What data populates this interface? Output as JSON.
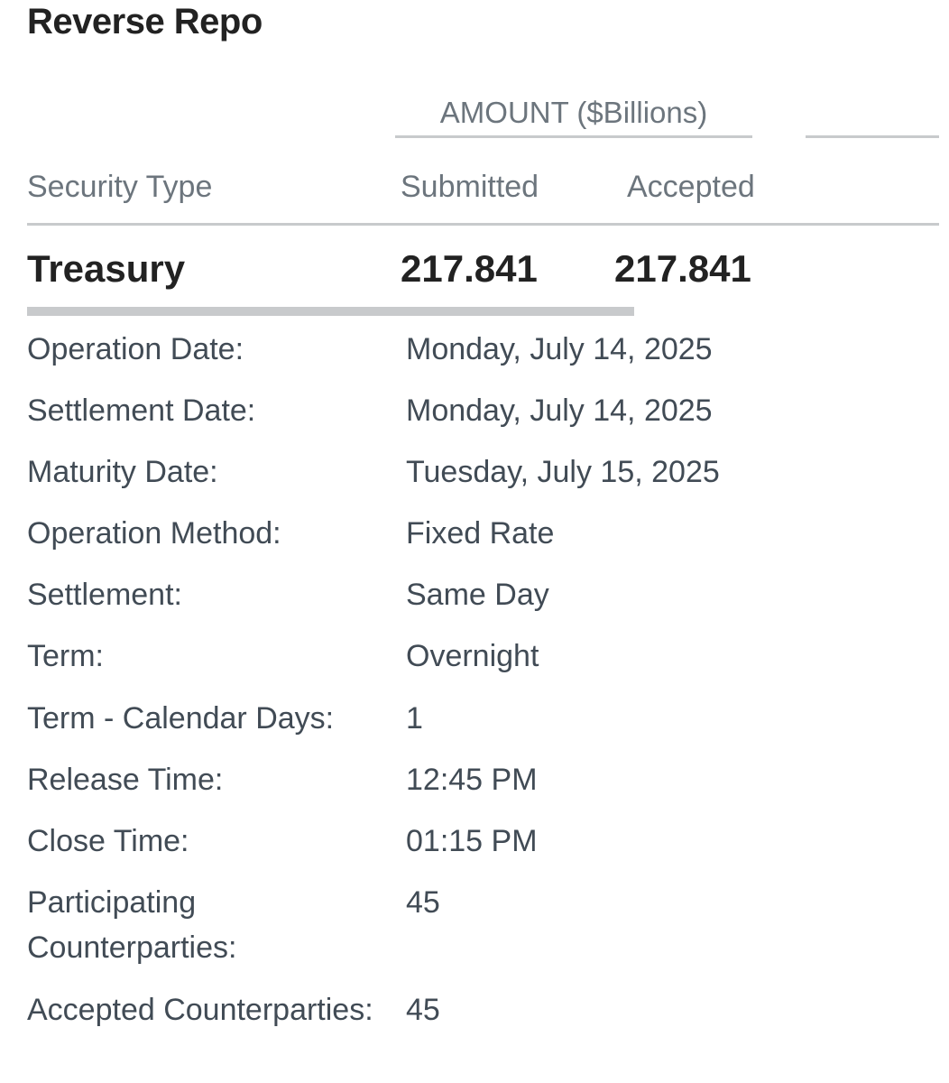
{
  "title": "Reverse Repo",
  "amount_header": "AMOUNT ($Billions)",
  "columns": {
    "security_type": "Security Type",
    "submitted": "Submitted",
    "accepted": "Accepted"
  },
  "treasury": {
    "label": "Treasury",
    "submitted": "217.841",
    "accepted": "217.841"
  },
  "details": [
    {
      "label": "Operation Date:",
      "value": "Monday, July 14, 2025"
    },
    {
      "label": "Settlement Date:",
      "value": "Monday, July 14, 2025"
    },
    {
      "label": "Maturity Date:",
      "value": "Tuesday, July 15, 2025"
    },
    {
      "label": "Operation Method:",
      "value": "Fixed Rate"
    },
    {
      "label": "Settlement:",
      "value": "Same Day"
    },
    {
      "label": "Term:",
      "value": "Overnight"
    },
    {
      "label": "Term - Calendar Days:",
      "value": "1"
    },
    {
      "label": "Release Time:",
      "value": "12:45 PM"
    },
    {
      "label": "Close Time:",
      "value": "01:15 PM"
    },
    {
      "label": "Participating Counterparties:",
      "value": "45"
    },
    {
      "label": "Accepted Counterparties:",
      "value": "45"
    }
  ]
}
